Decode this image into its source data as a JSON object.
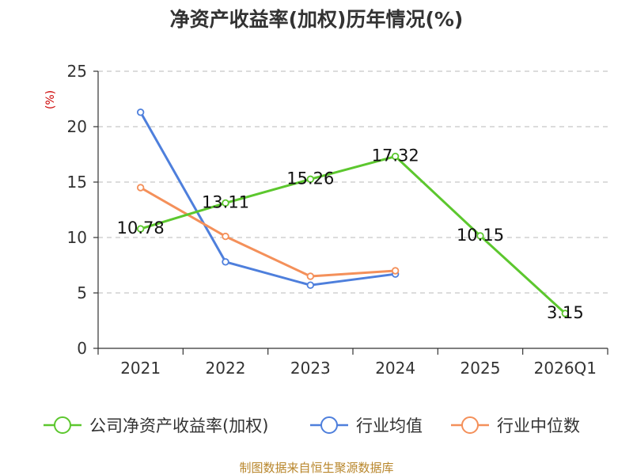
{
  "chart_data": {
    "type": "line",
    "title": "净资产收益率(加权)历年情况(%)",
    "unit_label": "(%)",
    "categories": [
      "2021",
      "2022",
      "2023",
      "2024",
      "2025",
      "2026Q1"
    ],
    "ylim": [
      0,
      25
    ],
    "yticks": [
      0,
      5,
      10,
      15,
      20,
      25
    ],
    "grid": true,
    "legend_position": "bottom",
    "series": [
      {
        "name": "公司净资产收益率(加权)",
        "color": "#5cc72e",
        "values": [
          10.78,
          13.11,
          15.26,
          17.32,
          10.15,
          3.15
        ],
        "labels": [
          "10.78",
          "13.11",
          "15.26",
          "17.32",
          "10.15",
          "3.15"
        ]
      },
      {
        "name": "行业均值",
        "color": "#4e7fdc",
        "values": [
          21.3,
          7.8,
          5.7,
          6.7,
          null,
          null
        ]
      },
      {
        "name": "行业中位数",
        "color": "#f4905a",
        "values": [
          14.5,
          10.1,
          6.5,
          7.0,
          null,
          null
        ]
      }
    ]
  },
  "source_text": "制图数据来自恒生聚源数据库"
}
